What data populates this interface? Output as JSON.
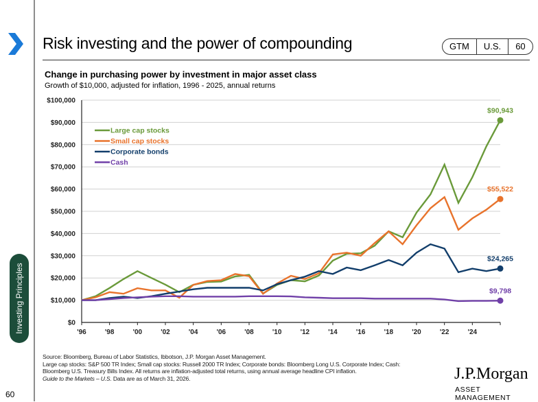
{
  "header": {
    "title": "Risk investing and the power of compounding",
    "pill": [
      "GTM",
      "U.S.",
      "60"
    ]
  },
  "side_tab": "Investing Principles",
  "page_number": "60",
  "chart_data": {
    "type": "line",
    "title": "Change in purchasing power by investment in major asset class",
    "subtitle": "Growth of $10,000, adjusted for inflation, 1996 - 2025, annual returns",
    "x": [
      1996,
      1997,
      1998,
      1999,
      2000,
      2001,
      2002,
      2003,
      2004,
      2005,
      2006,
      2007,
      2008,
      2009,
      2010,
      2011,
      2012,
      2013,
      2014,
      2015,
      2016,
      2017,
      2018,
      2019,
      2020,
      2021,
      2022,
      2023,
      2024,
      2025,
      2026
    ],
    "xticks": [
      "'96",
      "'98",
      "'00",
      "'02",
      "'04",
      "'06",
      "'08",
      "'10",
      "'12",
      "'14",
      "'16",
      "'18",
      "'20",
      "'22",
      "'24"
    ],
    "yticks": [
      "$0",
      "$10,000",
      "$20,000",
      "$30,000",
      "$40,000",
      "$50,000",
      "$60,000",
      "$70,000",
      "$80,000",
      "$90,000",
      "$100,000"
    ],
    "ylim": [
      0,
      100000
    ],
    "grid": true,
    "legend_position": "top-left",
    "series": [
      {
        "name": "Large cap stocks",
        "color": "#6a9a3a",
        "end_label": "$90,943",
        "values": [
          10000,
          11800,
          15500,
          19500,
          23100,
          20000,
          17000,
          13600,
          16900,
          18200,
          18400,
          20700,
          21400,
          13000,
          16900,
          19000,
          18500,
          21100,
          27800,
          30900,
          31100,
          34500,
          41000,
          38300,
          49400,
          57600,
          71000,
          53800,
          65300,
          79200,
          90943
        ]
      },
      {
        "name": "Small cap stocks",
        "color": "#e8732c",
        "end_label": "$55,522",
        "values": [
          10000,
          11300,
          13600,
          12900,
          15400,
          14400,
          14400,
          11100,
          16900,
          18600,
          19000,
          21800,
          20800,
          12900,
          17500,
          21000,
          19500,
          22100,
          30600,
          31400,
          30000,
          35700,
          41000,
          35200,
          43700,
          51400,
          56400,
          41700,
          46800,
          50700,
          55522
        ]
      },
      {
        "name": "Corporate bonds",
        "color": "#123e6b",
        "end_label": "$24,265",
        "values": [
          10000,
          10000,
          11000,
          11600,
          11000,
          11800,
          12900,
          13900,
          14900,
          15600,
          15600,
          15600,
          15600,
          14400,
          17200,
          19000,
          20600,
          23100,
          21800,
          24700,
          23500,
          25700,
          28100,
          25700,
          31400,
          35200,
          33200,
          22600,
          24200,
          23100,
          24265
        ]
      },
      {
        "name": "Cash",
        "color": "#7040a8",
        "end_label": "$9,798",
        "values": [
          10000,
          10000,
          10500,
          11000,
          11300,
          11600,
          11800,
          11800,
          11600,
          11600,
          11600,
          11600,
          11800,
          11800,
          11800,
          11700,
          11300,
          11100,
          10900,
          10900,
          10900,
          10700,
          10700,
          10700,
          10700,
          10700,
          10300,
          9600,
          9700,
          9700,
          9798
        ]
      }
    ]
  },
  "footer": {
    "lines": [
      "Source: Bloomberg, Bureau of Labor Statistics, Ibbotson, J.P. Morgan Asset Management.",
      "Large cap stocks: S&P 500 TR Index; Small cap stocks: Russell 2000 TR Index; Corporate bonds: Bloomberg Long U.S. Corporate Index; Cash:",
      "Bloomberg U.S. Treasury Bills Index. All returns are inflation-adjusted total returns, using annual average headline CPI inflation."
    ],
    "guide_italic": "Guide to the Markets – U.S.",
    "guide_rest": " Data are as of March 31, 2026."
  },
  "logo": {
    "name": "J.P.Morgan",
    "sub": "ASSET MANAGEMENT"
  }
}
